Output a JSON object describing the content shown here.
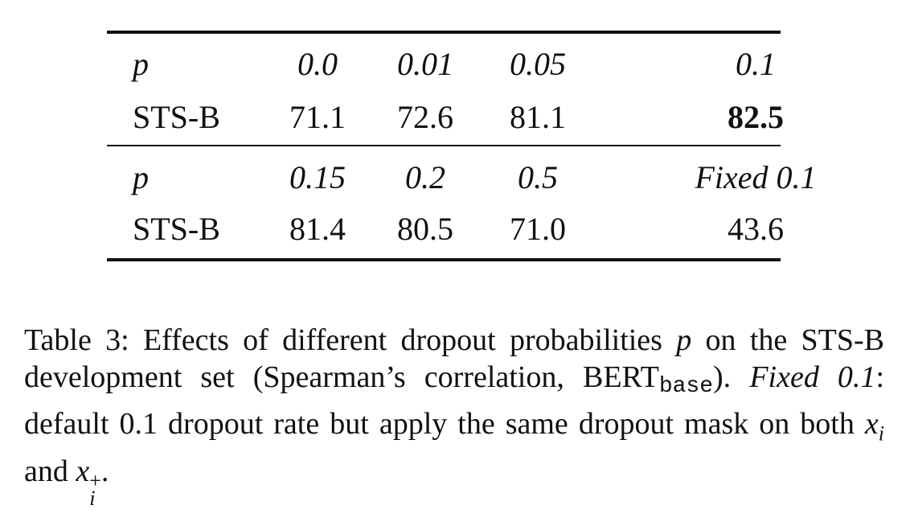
{
  "table": {
    "rows": [
      {
        "label": "p",
        "values": [
          "0.0",
          "0.01",
          "0.05",
          "0.1"
        ],
        "italic": true
      },
      {
        "label": "STS-B",
        "values": [
          "71.1",
          "72.6",
          "81.1",
          "82.5"
        ],
        "bold_index": 3
      },
      {
        "label": "p",
        "values": [
          "0.15",
          "0.2",
          "0.5",
          "Fixed 0.1"
        ],
        "italic": true
      },
      {
        "label": "STS-B",
        "values": [
          "81.4",
          "80.5",
          "71.0",
          "43.6"
        ]
      }
    ]
  },
  "caption": {
    "prefix": "Table 3:  Effects of different dropout probabilities ",
    "p": "p",
    "line2": " on the STS-B development set (Spearman’s correlation, BERT",
    "sub": "base",
    "mid": "). ",
    "fixed": "Fixed 0.1",
    "rest": ": default 0.1 dropout rate but apply the same dropout mask on both ",
    "x": "x",
    "i": "i",
    "and": " and ",
    "plus": "+",
    "end": "."
  }
}
